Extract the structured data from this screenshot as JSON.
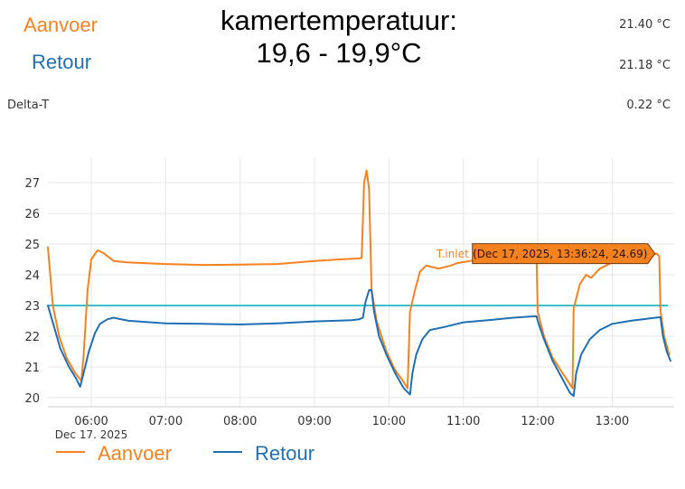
{
  "header": {
    "title_line1": "kamertemperatuur:",
    "title_line2": "19,6 - 19,9°C",
    "aanvoer_label": "Aanvoer",
    "retour_label": "Retour",
    "delta_label": "Delta-T",
    "aanvoer_value": "21.40 °C",
    "retour_value": "21.18 °C",
    "delta_value": "0.22 °C"
  },
  "colors": {
    "aanvoer": "#f5821f",
    "retour": "#1f6fb4",
    "reference": "#3cc0c8",
    "grid": "#e6e6e6",
    "tooltip_bg": "#f5821f",
    "tooltip_border": "#6b3a0e"
  },
  "legend": {
    "items": [
      {
        "label": "Aanvoer",
        "color": "#f5821f"
      },
      {
        "label": "Retour",
        "color": "#1f6fb4"
      }
    ]
  },
  "chart_data": {
    "type": "line",
    "title": "",
    "xlabel": "",
    "ylabel": "",
    "date_label": "Dec 17. 2025",
    "xlim": [
      "05:25",
      "13:50"
    ],
    "ylim": [
      19.7,
      27.8
    ],
    "x_ticks": [
      "06:00",
      "07:00",
      "08:00",
      "09:00",
      "10:00",
      "11:00",
      "12:00",
      "13:00"
    ],
    "y_ticks": [
      20,
      21,
      22,
      23,
      24,
      25,
      26,
      27
    ],
    "grid": true,
    "legend_position": "bottom-left",
    "reference_line": {
      "y": 23,
      "x_range": [
        "05:25",
        "13:45"
      ]
    },
    "tooltip": {
      "series_label": "T.inlet",
      "text": "(Dec 17, 2025, 13:36:24, 24.69)",
      "x": "13:36",
      "y": 24.69
    },
    "series": [
      {
        "name": "Aanvoer",
        "color": "#f5821f",
        "points": [
          [
            "05:25",
            24.9
          ],
          [
            "05:29",
            23.0
          ],
          [
            "05:34",
            22.0
          ],
          [
            "05:40",
            21.3
          ],
          [
            "05:47",
            20.8
          ],
          [
            "05:52",
            20.55
          ],
          [
            "05:54",
            21.5
          ],
          [
            "05:57",
            23.5
          ],
          [
            "06:00",
            24.5
          ],
          [
            "06:05",
            24.8
          ],
          [
            "06:10",
            24.7
          ],
          [
            "06:18",
            24.45
          ],
          [
            "06:30",
            24.4
          ],
          [
            "07:00",
            24.35
          ],
          [
            "07:30",
            24.32
          ],
          [
            "08:00",
            24.33
          ],
          [
            "08:30",
            24.35
          ],
          [
            "09:00",
            24.45
          ],
          [
            "09:20",
            24.5
          ],
          [
            "09:35",
            24.53
          ],
          [
            "09:38",
            24.55
          ],
          [
            "09:40",
            27.0
          ],
          [
            "09:42",
            27.4
          ],
          [
            "09:44",
            26.8
          ],
          [
            "09:46",
            23.5
          ],
          [
            "09:50",
            22.5
          ],
          [
            "09:58",
            21.5
          ],
          [
            "10:05",
            20.9
          ],
          [
            "10:12",
            20.5
          ],
          [
            "10:15",
            20.3
          ],
          [
            "10:17",
            22.8
          ],
          [
            "10:21",
            23.5
          ],
          [
            "10:25",
            24.1
          ],
          [
            "10:30",
            24.3
          ],
          [
            "10:35",
            24.25
          ],
          [
            "10:40",
            24.2
          ],
          [
            "10:50",
            24.3
          ],
          [
            "10:55",
            24.38
          ],
          [
            "11:20",
            24.55
          ],
          [
            "11:59",
            24.6
          ],
          [
            "12:00",
            22.8
          ],
          [
            "12:05",
            22.0
          ],
          [
            "12:12",
            21.3
          ],
          [
            "12:20",
            20.8
          ],
          [
            "12:28",
            20.3
          ],
          [
            "12:29",
            22.9
          ],
          [
            "12:34",
            23.7
          ],
          [
            "12:39",
            24.0
          ],
          [
            "12:43",
            23.9
          ],
          [
            "12:50",
            24.2
          ],
          [
            "13:00",
            24.4
          ],
          [
            "13:10",
            24.5
          ],
          [
            "13:25",
            24.6
          ],
          [
            "13:36",
            24.69
          ],
          [
            "13:38",
            24.6
          ],
          [
            "13:39",
            22.8
          ],
          [
            "13:42",
            22.0
          ],
          [
            "13:46",
            21.4
          ]
        ]
      },
      {
        "name": "Retour",
        "color": "#1f6fb4",
        "points": [
          [
            "05:25",
            23.0
          ],
          [
            "05:30",
            22.3
          ],
          [
            "05:35",
            21.6
          ],
          [
            "05:42",
            21.0
          ],
          [
            "05:48",
            20.6
          ],
          [
            "05:51",
            20.35
          ],
          [
            "05:55",
            21.0
          ],
          [
            "05:58",
            21.5
          ],
          [
            "06:03",
            22.1
          ],
          [
            "06:07",
            22.4
          ],
          [
            "06:13",
            22.55
          ],
          [
            "06:18",
            22.6
          ],
          [
            "06:30",
            22.5
          ],
          [
            "07:00",
            22.42
          ],
          [
            "07:30",
            22.4
          ],
          [
            "08:00",
            22.38
          ],
          [
            "08:30",
            22.42
          ],
          [
            "09:00",
            22.48
          ],
          [
            "09:30",
            22.52
          ],
          [
            "09:36",
            22.55
          ],
          [
            "09:39",
            22.6
          ],
          [
            "09:41",
            23.1
          ],
          [
            "09:44",
            23.5
          ],
          [
            "09:46",
            23.5
          ],
          [
            "09:48",
            22.8
          ],
          [
            "09:52",
            22.0
          ],
          [
            "09:58",
            21.4
          ],
          [
            "10:05",
            20.8
          ],
          [
            "10:12",
            20.3
          ],
          [
            "10:17",
            20.1
          ],
          [
            "10:19",
            20.8
          ],
          [
            "10:22",
            21.4
          ],
          [
            "10:27",
            21.9
          ],
          [
            "10:33",
            22.2
          ],
          [
            "10:45",
            22.3
          ],
          [
            "11:00",
            22.45
          ],
          [
            "11:20",
            22.52
          ],
          [
            "11:40",
            22.6
          ],
          [
            "11:59",
            22.65
          ],
          [
            "12:00",
            22.5
          ],
          [
            "12:05",
            21.9
          ],
          [
            "12:12",
            21.2
          ],
          [
            "12:20",
            20.6
          ],
          [
            "12:26",
            20.15
          ],
          [
            "12:29",
            20.05
          ],
          [
            "12:31",
            20.8
          ],
          [
            "12:35",
            21.4
          ],
          [
            "12:42",
            21.9
          ],
          [
            "12:50",
            22.2
          ],
          [
            "13:00",
            22.4
          ],
          [
            "13:15",
            22.5
          ],
          [
            "13:35",
            22.6
          ],
          [
            "13:39",
            22.62
          ],
          [
            "13:41",
            22.0
          ],
          [
            "13:44",
            21.5
          ],
          [
            "13:47",
            21.2
          ]
        ]
      }
    ]
  }
}
